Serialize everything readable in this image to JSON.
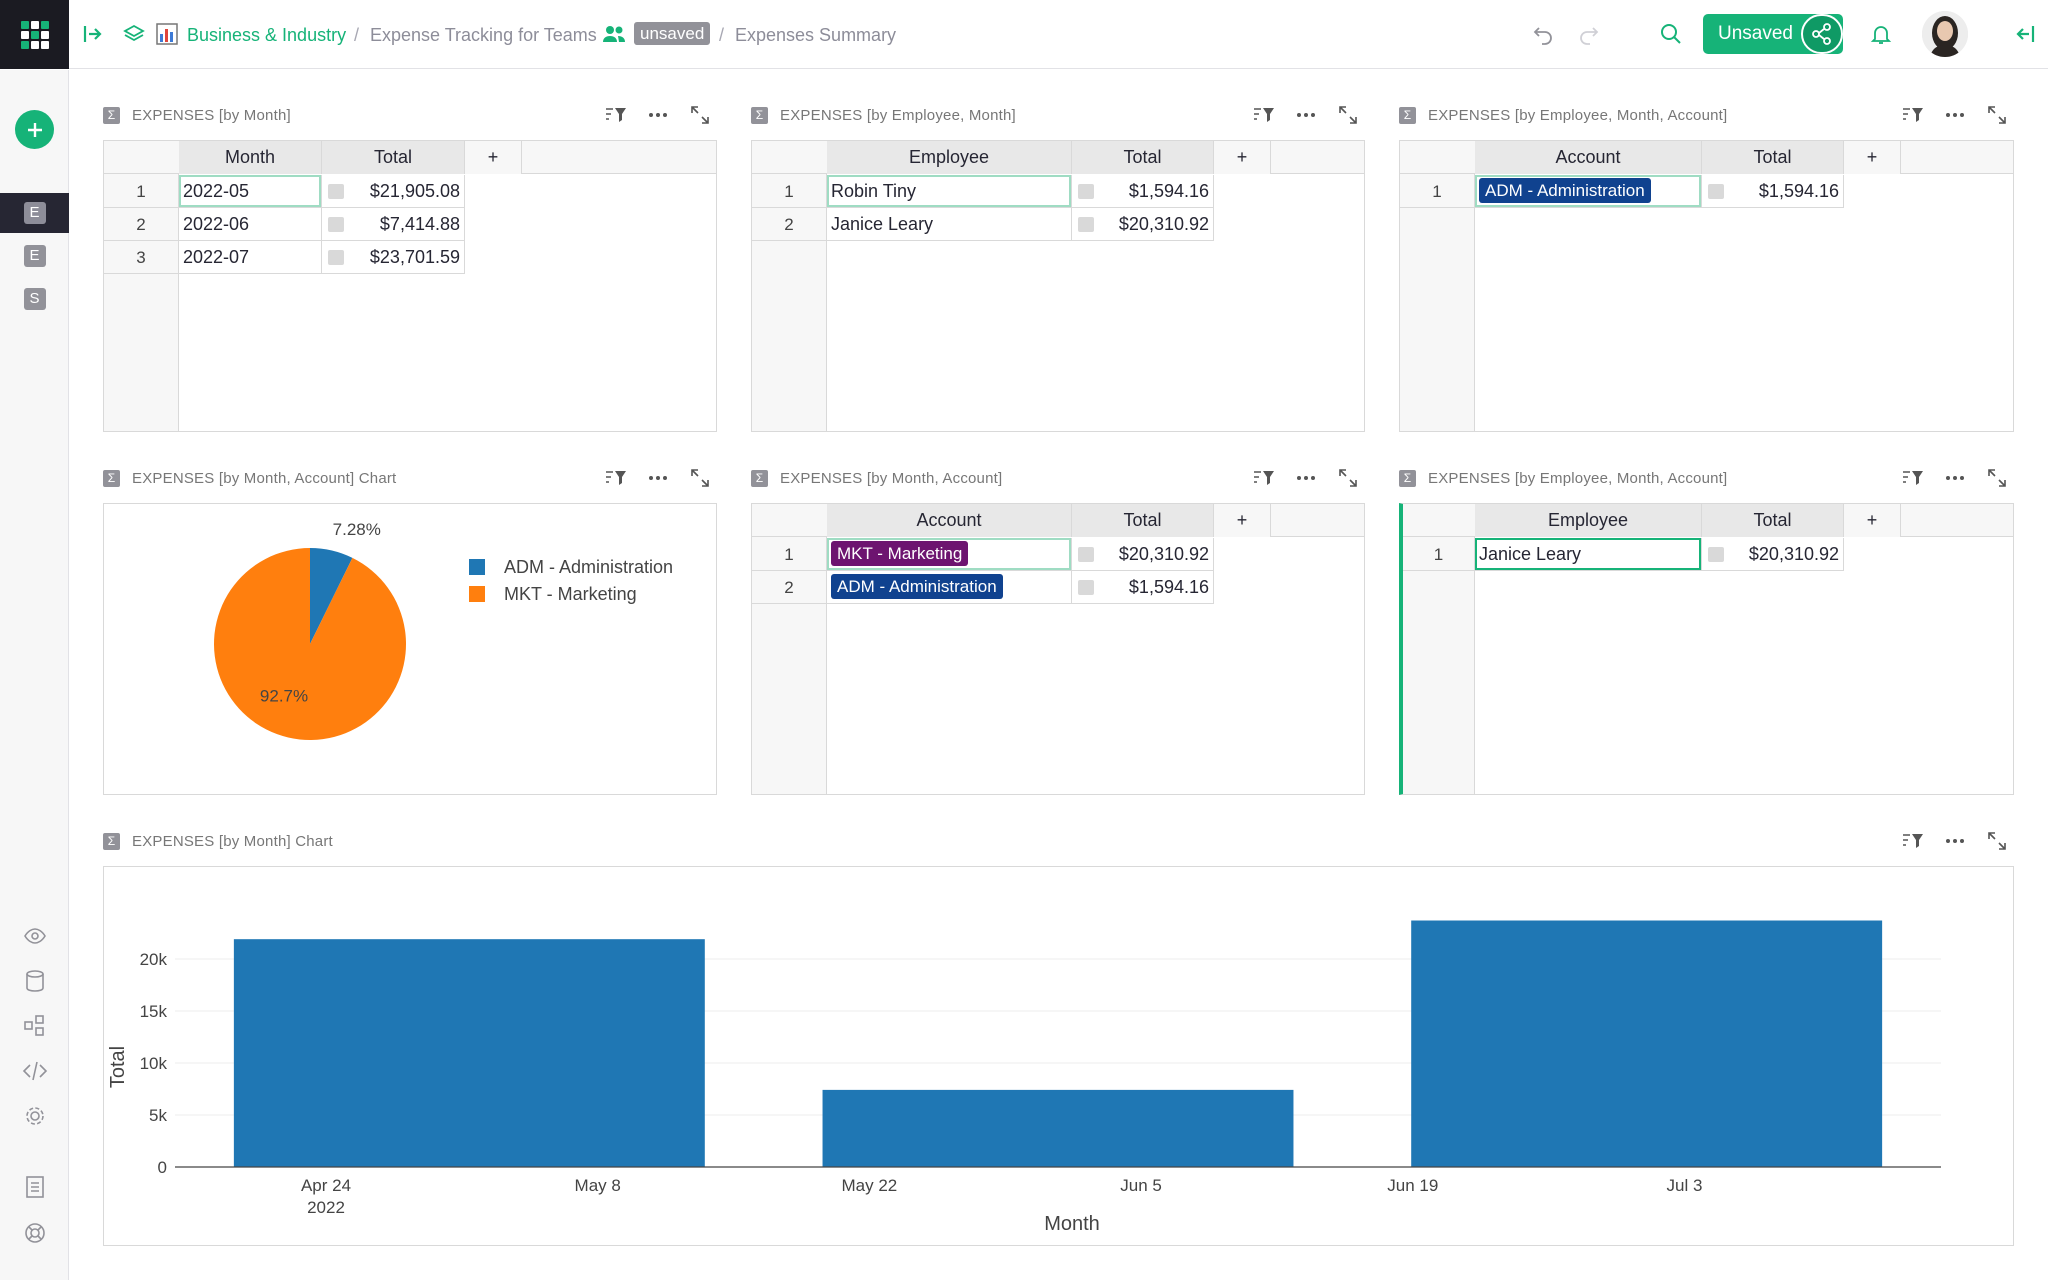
{
  "breadcrumb": {
    "org": "Business & Industry",
    "doc": "Expense Tracking for Teams",
    "unsaved_tag": "unsaved",
    "page": "Expenses Summary",
    "sep": "/"
  },
  "share_button": {
    "label": "Unsaved"
  },
  "left_pages": [
    {
      "badge": "E"
    },
    {
      "badge": "E"
    },
    {
      "badge": "S"
    }
  ],
  "widgets": {
    "by_month": {
      "title": "EXPENSES [by Month]",
      "columns": [
        "Month",
        "Total",
        "+"
      ],
      "rows": [
        {
          "n": "1",
          "month": "2022-05",
          "total": "$21,905.08"
        },
        {
          "n": "2",
          "month": "2022-06",
          "total": "$7,414.88"
        },
        {
          "n": "3",
          "month": "2022-07",
          "total": "$23,701.59"
        }
      ]
    },
    "by_employee_month": {
      "title": "EXPENSES [by Employee, Month]",
      "columns": [
        "Employee",
        "Total",
        "+"
      ],
      "rows": [
        {
          "n": "1",
          "employee": "Robin Tiny",
          "total": "$1,594.16"
        },
        {
          "n": "2",
          "employee": "Janice Leary",
          "total": "$20,310.92"
        }
      ]
    },
    "by_emp_month_account_1": {
      "title": "EXPENSES [by Employee, Month, Account]",
      "columns": [
        "Account",
        "Total",
        "+"
      ],
      "rows": [
        {
          "n": "1",
          "account": "ADM - Administration",
          "total": "$1,594.16"
        }
      ]
    },
    "pie_chart": {
      "title": "EXPENSES [by Month, Account] Chart"
    },
    "by_month_account": {
      "title": "EXPENSES [by Month, Account]",
      "columns": [
        "Account",
        "Total",
        "+"
      ],
      "rows": [
        {
          "n": "1",
          "account": "MKT - Marketing",
          "total": "$20,310.92"
        },
        {
          "n": "2",
          "account": "ADM - Administration",
          "total": "$1,594.16"
        }
      ]
    },
    "by_emp_month_account_2": {
      "title": "EXPENSES [by Employee, Month, Account]",
      "columns": [
        "Employee",
        "Total",
        "+"
      ],
      "rows": [
        {
          "n": "1",
          "employee": "Janice Leary",
          "total": "$20,310.92"
        }
      ]
    },
    "bar_chart": {
      "title": "EXPENSES [by Month] Chart"
    }
  },
  "colors": {
    "accent": "#16b378",
    "adm": "#1f77b4",
    "mkt": "#ff7f0e",
    "chip_adm": "#10428f",
    "chip_mkt": "#6d1470"
  },
  "chart_data": [
    {
      "type": "pie",
      "labels": [
        "ADM - Administration",
        "MKT - Marketing"
      ],
      "values": [
        7.28,
        92.7
      ],
      "data_labels": [
        "7.28%",
        "92.7%"
      ],
      "legend": "right"
    },
    {
      "type": "bar",
      "categories": [
        "2022-05",
        "2022-06",
        "2022-07"
      ],
      "values": [
        21905.08,
        7414.88,
        23701.59
      ],
      "xlabel": "Month",
      "ylabel": "Total",
      "x_ticks": [
        "Apr 24",
        "May 8",
        "May 22",
        "Jun 5",
        "Jun 19",
        "Jul 3"
      ],
      "x_tick_sub": "2022",
      "y_ticks": [
        "0",
        "5k",
        "10k",
        "15k",
        "20k"
      ],
      "ylim": [
        0,
        25000
      ],
      "grid": true
    }
  ]
}
